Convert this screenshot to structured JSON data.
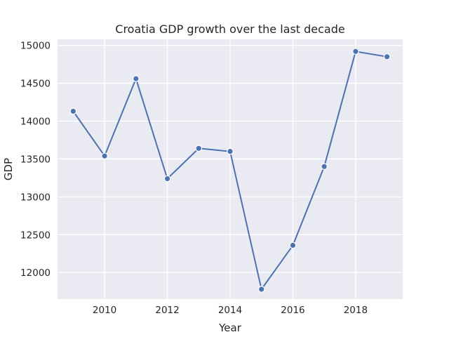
{
  "chart_data": {
    "type": "line",
    "title": "Croatia GDP growth over the last decade",
    "xlabel": "Year",
    "ylabel": "GDP",
    "x": [
      2009,
      2010,
      2011,
      2012,
      2013,
      2014,
      2015,
      2016,
      2017,
      2018,
      2019
    ],
    "series": [
      {
        "values": [
          14130,
          13540,
          14560,
          13240,
          13640,
          13600,
          11780,
          12360,
          13400,
          14920,
          14850
        ]
      }
    ],
    "xlim": [
      2008.5,
      2019.5
    ],
    "ylim": [
      11650,
      15080
    ],
    "xticks": [
      2010,
      2012,
      2014,
      2016,
      2018
    ],
    "yticks": [
      12000,
      12500,
      13000,
      13500,
      14000,
      14500,
      15000
    ],
    "grid": true,
    "colors": {
      "background": "#eaeaf2",
      "grid": "#ffffff",
      "line": "#4c72b0"
    }
  }
}
